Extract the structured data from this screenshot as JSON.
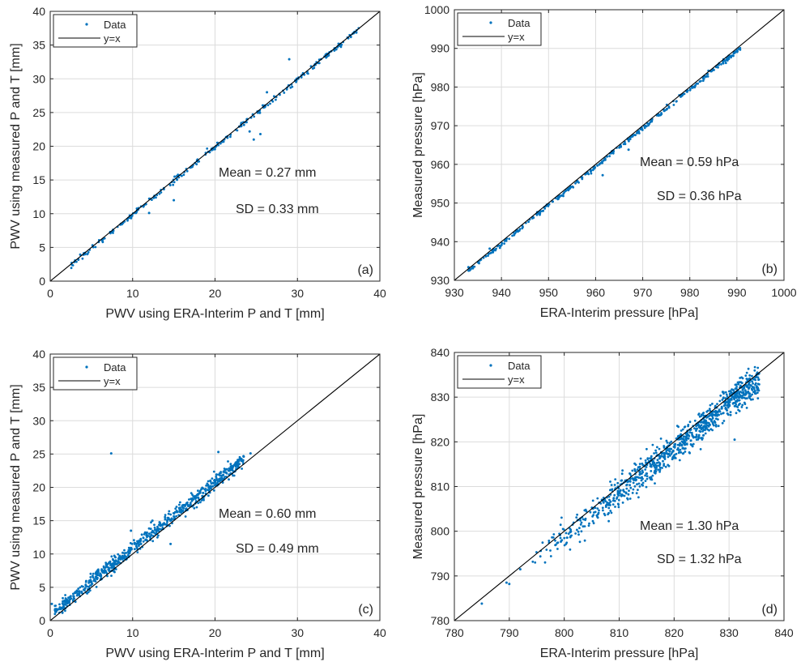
{
  "colors": {
    "data": "#0072BD",
    "line": "#000000",
    "grid": "#DCDCDC",
    "axis": "#262626"
  },
  "chart_data": [
    {
      "type": "scatter",
      "panel_label": "(a)",
      "xlabel": "PWV using ERA-Interim P and T [mm]",
      "ylabel": "PWV using measured P and T [mm]",
      "xlim": [
        0,
        40
      ],
      "ylim": [
        0,
        40
      ],
      "xticks": [
        0,
        10,
        20,
        30,
        40
      ],
      "yticks": [
        0,
        5,
        10,
        15,
        20,
        25,
        30,
        35,
        40
      ],
      "grid": true,
      "legend_position": "top-left",
      "annotations": [
        "Mean = 0.27 mm",
        "SD = 0.33 mm"
      ],
      "series": [
        {
          "name": "Data",
          "style": "points",
          "offset_mean": 0.27,
          "offset_sd": 0.33,
          "range": [
            2.5,
            37.5
          ],
          "count": 260,
          "outliers": [
            [
              29,
              32.9
            ],
            [
              15,
              12
            ],
            [
              12,
              10.1
            ],
            [
              25.5,
              21.8
            ],
            [
              24.7,
              21
            ],
            [
              24.2,
              22.2
            ],
            [
              15.1,
              15.5
            ],
            [
              26.3,
              28
            ]
          ]
        },
        {
          "name": "y=x",
          "style": "line",
          "x": [
            0,
            40
          ],
          "y": [
            0,
            40
          ]
        }
      ]
    },
    {
      "type": "scatter",
      "panel_label": "(b)",
      "xlabel": "ERA-Interim pressure [hPa]",
      "ylabel": "Measured pressure [hPa]",
      "xlim": [
        930,
        1000
      ],
      "ylim": [
        930,
        1000
      ],
      "xticks": [
        930,
        940,
        950,
        960,
        970,
        980,
        990,
        1000
      ],
      "yticks": [
        930,
        940,
        950,
        960,
        970,
        980,
        990,
        1000
      ],
      "grid": true,
      "legend_position": "top-left",
      "annotations": [
        "Mean = 0.59 hPa",
        "SD = 0.36 hPa"
      ],
      "series": [
        {
          "name": "Data",
          "style": "points",
          "offset_mean": 0.59,
          "offset_sd": 0.36,
          "range": [
            933,
            991
          ],
          "count": 320,
          "outliers": [
            [
              961.5,
              957.2
            ],
            [
              967,
              963.8
            ],
            [
              933,
              933.4
            ],
            [
              937.5,
              938.2
            ]
          ]
        },
        {
          "name": "y=x",
          "style": "line",
          "x": [
            930,
            1000
          ],
          "y": [
            930,
            1000
          ]
        }
      ]
    },
    {
      "type": "scatter",
      "panel_label": "(c)",
      "xlabel": "PWV using ERA-Interim P and T [mm]",
      "ylabel": "PWV using measured P and T [mm]",
      "xlim": [
        0,
        40
      ],
      "ylim": [
        0,
        40
      ],
      "xticks": [
        0,
        10,
        20,
        30,
        40
      ],
      "yticks": [
        0,
        5,
        10,
        15,
        20,
        25,
        30,
        35,
        40
      ],
      "grid": true,
      "legend_position": "top-left",
      "annotations": [
        "Mean = 0.60 mm",
        "SD = 0.49 mm"
      ],
      "series": [
        {
          "name": "Data",
          "style": "points",
          "offset_mean": 0.6,
          "offset_sd": 0.49,
          "range": [
            0.5,
            23.5
          ],
          "count": 700,
          "outliers": [
            [
              7.4,
              25.1
            ],
            [
              20.4,
              25.3
            ],
            [
              24.3,
              25.1
            ],
            [
              0.2,
              2.5
            ],
            [
              9.8,
              13.5
            ],
            [
              12.4,
              15
            ],
            [
              14.6,
              11.5
            ]
          ]
        },
        {
          "name": "y=x",
          "style": "line",
          "x": [
            0,
            40
          ],
          "y": [
            0,
            40
          ]
        }
      ]
    },
    {
      "type": "scatter",
      "panel_label": "(d)",
      "xlabel": "ERA-Interim pressure [hPa]",
      "ylabel": "Measured pressure [hPa]",
      "xlim": [
        780,
        840
      ],
      "ylim": [
        780,
        840
      ],
      "xticks": [
        780,
        790,
        800,
        810,
        820,
        830,
        840
      ],
      "yticks": [
        780,
        790,
        800,
        810,
        820,
        830,
        840
      ],
      "grid": true,
      "legend_position": "top-left",
      "annotations": [
        "Mean = 1.30 hPa",
        "SD = 1.32 hPa"
      ],
      "series": [
        {
          "name": "Data",
          "style": "points",
          "offset_mean": 1.3,
          "offset_sd": 1.32,
          "range": [
            794,
            835.5
          ],
          "count": 900,
          "outliers": [
            [
              785,
              783.8
            ],
            [
              789.5,
              788.5
            ],
            [
              790,
              788.2
            ],
            [
              792,
              791.5
            ],
            [
              831,
              820.5
            ]
          ]
        },
        {
          "name": "y=x",
          "style": "line",
          "x": [
            780,
            840
          ],
          "y": [
            780,
            840
          ]
        }
      ]
    }
  ]
}
